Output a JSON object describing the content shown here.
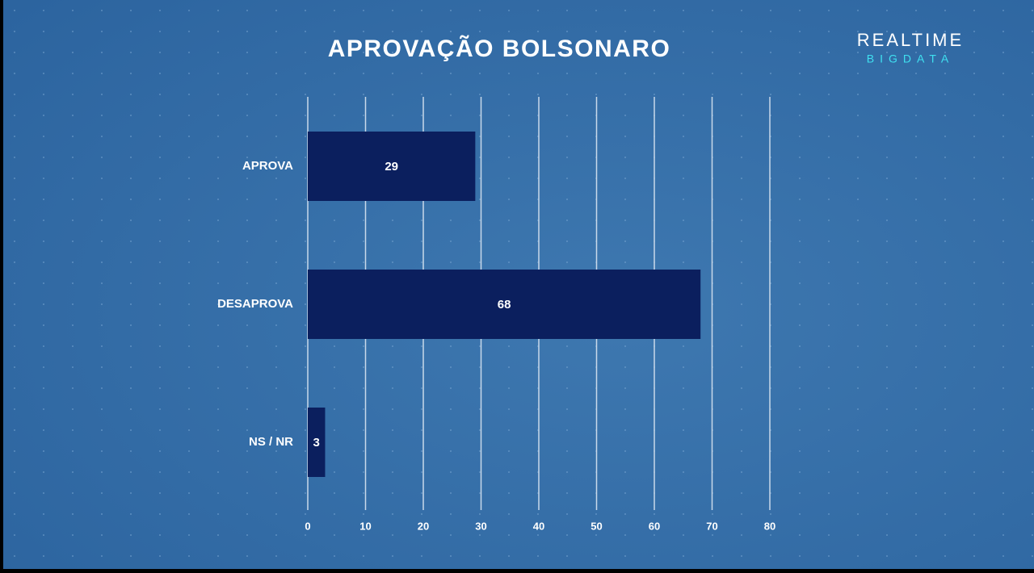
{
  "chart_data": {
    "type": "bar",
    "horizontal": true,
    "title": "APROVAÇÃO  BOLSONARO",
    "categories": [
      "APROVA",
      "DESAPROVA",
      "NS / NR"
    ],
    "values": [
      29,
      68,
      3
    ],
    "color": "#0b1f5e",
    "xlim": [
      0,
      80
    ],
    "xticks": [
      0,
      10,
      20,
      30,
      40,
      50,
      60,
      70,
      80
    ],
    "grid": true
  },
  "logo": [
    "REALTIME",
    "BIGDATA"
  ]
}
